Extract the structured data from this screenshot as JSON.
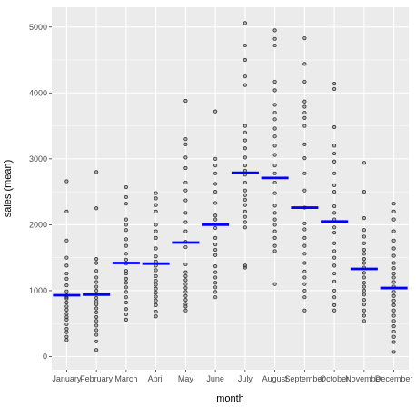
{
  "chart_data": {
    "type": "scatter",
    "title": "",
    "xlabel": "month",
    "ylabel": "sales (mean)",
    "ylim": [
      -200,
      5300
    ],
    "y_ticks": [
      0,
      1000,
      2000,
      3000,
      4000,
      5000
    ],
    "grid": true,
    "panel_background": "#EBEBEB",
    "grid_color": "#FFFFFF",
    "point_color": "#333333",
    "mean_color": "#0000FF",
    "categories": [
      "January",
      "February",
      "March",
      "April",
      "May",
      "June",
      "July",
      "August",
      "September",
      "October",
      "November",
      "December"
    ],
    "means": [
      930,
      940,
      1420,
      1410,
      1730,
      2000,
      2790,
      2710,
      2260,
      2050,
      1330,
      1040
    ],
    "points": [
      [
        2660,
        2200,
        1760,
        1500,
        1380,
        1260,
        1180,
        1080,
        990,
        930,
        900,
        880,
        820,
        760,
        710,
        650,
        600,
        560,
        490,
        420,
        370,
        300,
        250
      ],
      [
        2800,
        2250,
        1480,
        1420,
        1300,
        1200,
        1130,
        1060,
        1000,
        950,
        890,
        840,
        790,
        730,
        670,
        600,
        540,
        470,
        400,
        330,
        230,
        100
      ],
      [
        2570,
        2420,
        2320,
        2080,
        2000,
        1920,
        1780,
        1680,
        1560,
        1470,
        1410,
        1300,
        1260,
        1180,
        1120,
        1050,
        980,
        900,
        820,
        720,
        640,
        560
      ],
      [
        2480,
        2400,
        2300,
        2200,
        2000,
        1900,
        1800,
        1640,
        1520,
        1440,
        1380,
        1310,
        1220,
        1150,
        1090,
        1030,
        970,
        910,
        850,
        780,
        680,
        610
      ],
      [
        3880,
        3300,
        3220,
        3020,
        2860,
        2640,
        2520,
        2370,
        2180,
        2040,
        1900,
        1740,
        1660,
        1400,
        1280,
        1220,
        1160,
        1100,
        1040,
        980,
        920,
        860,
        800,
        760,
        700
      ],
      [
        3720,
        3000,
        2900,
        2780,
        2620,
        2500,
        2330,
        2140,
        2080,
        1950,
        1800,
        1700,
        1620,
        1540,
        1370,
        1280,
        1200,
        1120,
        1050,
        980,
        900
      ],
      [
        5060,
        4720,
        4500,
        4250,
        4120,
        3500,
        3400,
        3280,
        3160,
        3020,
        2900,
        2820,
        2760,
        2640,
        2520,
        2450,
        2380,
        2300,
        2200,
        2120,
        2040,
        1960,
        1380,
        1350
      ],
      [
        4950,
        4820,
        4720,
        4170,
        4040,
        3820,
        3700,
        3600,
        3460,
        3340,
        3200,
        3060,
        2900,
        2780,
        2640,
        2480,
        2290,
        2180,
        2080,
        2000,
        1900,
        1800,
        1680,
        1600,
        1100
      ],
      [
        4830,
        4440,
        4170,
        3870,
        3790,
        3700,
        3620,
        3500,
        3220,
        3010,
        2780,
        2520,
        2260,
        2020,
        1930,
        1800,
        1680,
        1560,
        1420,
        1290,
        1200,
        1100,
        1000,
        900,
        700
      ],
      [
        4140,
        4060,
        3480,
        3200,
        3080,
        2960,
        2780,
        2600,
        2500,
        2280,
        2180,
        2080,
        1960,
        1880,
        1720,
        1600,
        1500,
        1380,
        1260,
        1140,
        1000,
        900,
        780,
        700
      ],
      [
        2940,
        2500,
        2100,
        1920,
        1820,
        1720,
        1620,
        1560,
        1480,
        1420,
        1350,
        1270,
        1200,
        1120,
        1060,
        1000,
        940,
        860,
        790,
        700,
        620,
        540
      ],
      [
        2320,
        2200,
        2080,
        1900,
        1760,
        1640,
        1530,
        1420,
        1340,
        1260,
        1200,
        1130,
        1060,
        980,
        920,
        850,
        780,
        700,
        620,
        540,
        460,
        380,
        300,
        220,
        70
      ]
    ]
  }
}
